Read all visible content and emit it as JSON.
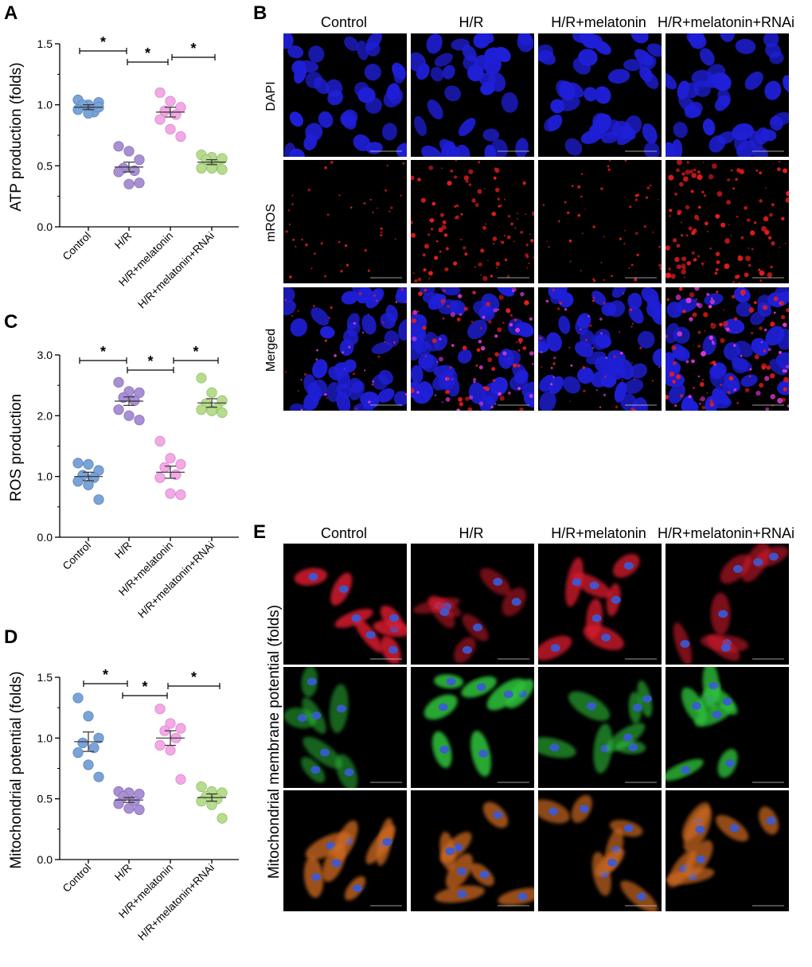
{
  "colors": {
    "control": "#7aa3d8",
    "hr": "#a890d3",
    "melatonin": "#f2a9e6",
    "rnai": "#b7dc8d",
    "dapi": "#1f1fd8",
    "mros": "#e81d1d",
    "jc_red": "#d81e2e",
    "jc_green": "#2fc03a",
    "jc_merge": "#cf6a23"
  },
  "panels": {
    "A": "A",
    "B": "B",
    "C": "C",
    "D": "D",
    "E": "E"
  },
  "chart_data": [
    {
      "id": "A",
      "type": "scatter",
      "ylabel": "ATP production (folds)",
      "ylim": [
        0,
        1.5
      ],
      "yticks": [
        "0.0",
        "0.5",
        "1.0",
        "1.5"
      ],
      "categories": [
        "Control",
        "H/R",
        "H/R+melatonin",
        "H/R+melatonin+RNAi"
      ],
      "series": [
        {
          "name": "Control",
          "values": [
            1.04,
            1.0,
            1.02,
            1.0,
            0.94,
            0.96,
            0.93,
            0.98
          ],
          "mean": 0.98,
          "sem": 0.02
        },
        {
          "name": "H/R",
          "values": [
            0.66,
            0.62,
            0.55,
            0.48,
            0.46,
            0.45,
            0.35,
            0.36
          ],
          "mean": 0.49,
          "sem": 0.04
        },
        {
          "name": "H/R+melatonin",
          "values": [
            1.1,
            1.03,
            0.98,
            0.95,
            0.92,
            0.88,
            0.8,
            0.74
          ],
          "mean": 0.94,
          "sem": 0.04
        },
        {
          "name": "H/R+melatonin+RNAi",
          "values": [
            0.59,
            0.57,
            0.56,
            0.55,
            0.5,
            0.48,
            0.48,
            0.47
          ],
          "mean": 0.53,
          "sem": 0.02
        }
      ],
      "significance": [
        {
          "from": 0,
          "to": 1,
          "label": "*"
        },
        {
          "from": 1,
          "to": 2,
          "label": "*"
        },
        {
          "from": 2,
          "to": 3,
          "label": "*"
        }
      ]
    },
    {
      "id": "C",
      "type": "scatter",
      "ylabel": "ROS production",
      "ylim": [
        0,
        3
      ],
      "yticks": [
        "0.0",
        "1.0",
        "2.0",
        "3.0"
      ],
      "categories": [
        "Control",
        "H/R",
        "H/R+melatonin",
        "H/R+melatonin+RNAi"
      ],
      "series": [
        {
          "name": "Control",
          "values": [
            1.22,
            1.2,
            1.1,
            1.02,
            0.98,
            0.92,
            0.86,
            0.62
          ],
          "mean": 1.0,
          "sem": 0.07
        },
        {
          "name": "H/R",
          "values": [
            2.55,
            2.4,
            2.38,
            2.3,
            2.25,
            2.1,
            2.0,
            1.93
          ],
          "mean": 2.24,
          "sem": 0.07
        },
        {
          "name": "H/R+melatonin",
          "values": [
            1.58,
            1.3,
            1.2,
            1.15,
            1.03,
            0.98,
            0.72,
            0.7
          ],
          "mean": 1.07,
          "sem": 0.1
        },
        {
          "name": "H/R+melatonin+RNAi",
          "values": [
            2.62,
            2.38,
            2.25,
            2.2,
            2.12,
            2.1,
            2.08,
            2.05
          ],
          "mean": 2.21,
          "sem": 0.07
        }
      ],
      "significance": [
        {
          "from": 0,
          "to": 1,
          "label": "*"
        },
        {
          "from": 1,
          "to": 2,
          "label": "*"
        },
        {
          "from": 2,
          "to": 3,
          "label": "*"
        }
      ]
    },
    {
      "id": "D",
      "type": "scatter",
      "ylabel": "Mitochondrial potential (folds)",
      "ylim": [
        0,
        1.5
      ],
      "yticks": [
        "0.0",
        "0.5",
        "1.0",
        "1.5"
      ],
      "categories": [
        "Control",
        "H/R",
        "H/R+melatonin",
        "H/R+melatonin+RNAi"
      ],
      "series": [
        {
          "name": "Control",
          "values": [
            1.33,
            1.18,
            1.0,
            0.96,
            0.92,
            0.88,
            0.78,
            0.68
          ],
          "mean": 0.97,
          "sem": 0.08
        },
        {
          "name": "H/R",
          "values": [
            0.56,
            0.55,
            0.54,
            0.52,
            0.48,
            0.46,
            0.42,
            0.41
          ],
          "mean": 0.49,
          "sem": 0.02
        },
        {
          "name": "H/R+melatonin",
          "values": [
            1.24,
            1.12,
            1.08,
            1.06,
            1.0,
            0.94,
            0.9,
            0.66
          ],
          "mean": 1.0,
          "sem": 0.06
        },
        {
          "name": "H/R+melatonin+RNAi",
          "values": [
            0.6,
            0.56,
            0.55,
            0.52,
            0.5,
            0.48,
            0.45,
            0.34
          ],
          "mean": 0.51,
          "sem": 0.03
        }
      ],
      "significance": [
        {
          "from": 0,
          "to": 1,
          "label": "*"
        },
        {
          "from": 1,
          "to": 2,
          "label": "*"
        },
        {
          "from": 2,
          "to": 3,
          "label": "*"
        }
      ]
    }
  ],
  "panel_B": {
    "columns": [
      "Control",
      "H/R",
      "H/R+melatonin",
      "H/R+melatonin+RNAi"
    ],
    "rows": [
      "DAPI",
      "mROS",
      "Merged"
    ],
    "scale": "0    μm    50"
  },
  "panel_E": {
    "columns": [
      "Control",
      "H/R",
      "H/R+melatonin",
      "H/R+melatonin+RNAi"
    ],
    "side_label": "Mitochondrial membrane potential (folds)",
    "scale": "0    μm    50"
  }
}
